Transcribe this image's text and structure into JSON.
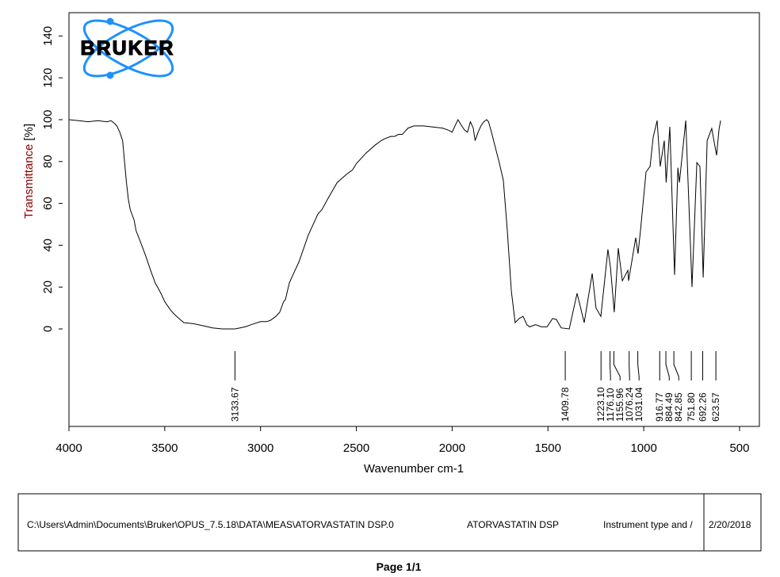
{
  "chart_data": {
    "type": "line",
    "title": "",
    "xlabel": "Wavenumber cm-1",
    "ylabel": "Transmittance",
    "ylabel_unit": "[%]",
    "ylabel_color": "#8b0000",
    "xlim": [
      4000,
      397
    ],
    "ylim": [
      -45,
      152
    ],
    "x_ticks": [
      4000,
      3500,
      3000,
      2500,
      2000,
      1500,
      1000,
      500
    ],
    "y_ticks": [
      0,
      20,
      40,
      60,
      80,
      100,
      120,
      140
    ],
    "grid": false,
    "line_color": "#000000",
    "series": [
      {
        "x": [
          4000,
          3950,
          3900,
          3850,
          3800,
          3780,
          3760,
          3750,
          3735,
          3720,
          3710,
          3700,
          3690,
          3680,
          3660,
          3650,
          3620,
          3600,
          3570,
          3550,
          3520,
          3500,
          3470,
          3450,
          3420,
          3400,
          3350,
          3300,
          3250,
          3200,
          3133,
          3080,
          3050,
          3000,
          2970,
          2950,
          2920,
          2900,
          2880,
          2870,
          2850,
          2820,
          2800,
          2750,
          2700,
          2680,
          2650,
          2600,
          2550,
          2520,
          2500,
          2450,
          2400,
          2370,
          2350,
          2320,
          2300,
          2280,
          2260,
          2250,
          2230,
          2200,
          2150,
          2100,
          2050,
          2020,
          2000,
          1985,
          1970,
          1950,
          1935,
          1920,
          1905,
          1890,
          1880,
          1865,
          1850,
          1835,
          1820,
          1810,
          1795,
          1753,
          1733,
          1712,
          1691,
          1671,
          1650,
          1630,
          1610,
          1596,
          1565,
          1534,
          1505,
          1476,
          1456,
          1431,
          1389,
          1348,
          1311,
          1269,
          1249,
          1224,
          1187,
          1174,
          1154,
          1133,
          1112,
          1083,
          1079,
          1042,
          1030,
          1017,
          988,
          967,
          951,
          930,
          914,
          893,
          883,
          864,
          839,
          822,
          814,
          781,
          748,
          723,
          707,
          690,
          669,
          645,
          620,
          607,
          599
        ],
        "y": [
          100,
          99.5,
          99,
          99.5,
          99,
          99.5,
          98,
          97,
          94,
          90,
          80,
          70,
          62,
          57,
          52,
          47,
          40,
          35,
          27,
          22,
          17,
          13,
          9,
          7,
          4.5,
          3,
          2.5,
          1.5,
          0.5,
          0,
          0,
          1,
          2,
          3.5,
          3.5,
          4,
          6,
          8,
          13,
          14,
          22,
          28,
          32,
          45,
          55,
          57,
          62,
          70,
          74,
          76,
          79,
          84,
          88,
          90,
          91,
          92,
          92,
          93,
          93,
          94,
          96,
          97,
          97,
          96.5,
          96,
          95,
          94,
          97,
          100,
          97,
          95,
          94,
          99,
          96,
          90,
          94,
          97,
          99,
          100,
          99,
          94,
          79,
          71,
          47,
          18,
          3,
          5,
          6,
          2,
          1,
          2,
          1,
          1,
          5,
          4.5,
          0.5,
          0,
          17,
          3,
          26.5,
          10,
          6,
          38,
          29.5,
          8,
          38.6,
          23,
          28,
          23,
          43.6,
          36,
          47,
          75,
          77.6,
          91.6,
          99.6,
          77.6,
          90,
          70,
          96.6,
          25.8,
          77,
          70,
          99.6,
          20,
          79.5,
          77.6,
          24.6,
          90,
          95.8,
          83,
          95.5,
          99.6
        ]
      }
    ],
    "peak_labels": [
      "3133.67",
      "1409.78",
      "1223.10",
      "1176.10",
      "1155.96",
      "1076.24",
      "1031.04",
      "916.77",
      "884.49",
      "842.85",
      "751.80",
      "692.26",
      "623.57"
    ],
    "logo_text": "BRUKER",
    "logo_color": "#1e90ff"
  },
  "footer": {
    "file_path": "C:\\Users\\Admin\\Documents\\Bruker\\OPUS_7.5.18\\DATA\\MEAS\\ATORVASTATIN  DSP.0",
    "sample_name": "ATORVASTATIN  DSP",
    "instrument": "Instrument type and /",
    "date": "2/20/2018",
    "page": "Page 1/1"
  }
}
